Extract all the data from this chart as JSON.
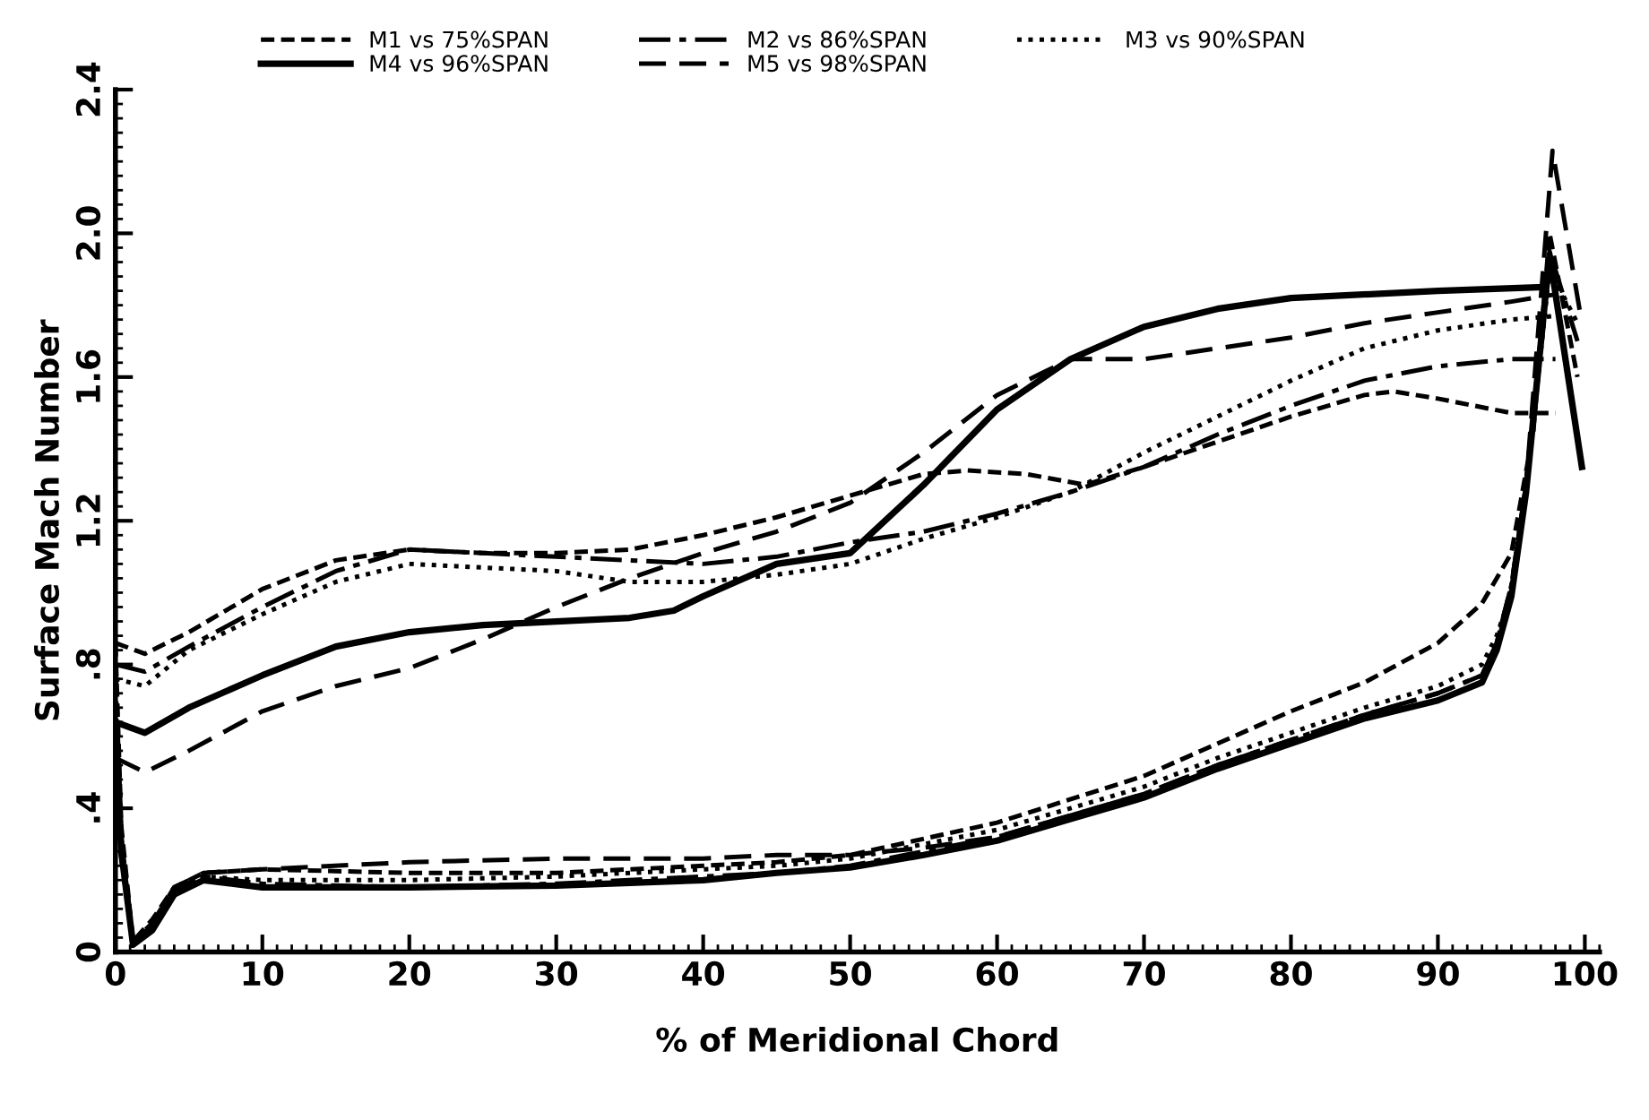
{
  "chart_data": {
    "type": "line",
    "xlabel": "% of Meridional Chord",
    "ylabel": "Surface Mach Number",
    "xlim": [
      0,
      101
    ],
    "ylim": [
      0,
      2.4
    ],
    "xticks": [
      0,
      10,
      20,
      30,
      40,
      50,
      60,
      70,
      80,
      90,
      100
    ],
    "yticks": [
      0,
      {
        "value": 0.4,
        "label": ".4"
      },
      {
        "value": 0.8,
        "label": ".8"
      },
      1.2,
      1.6,
      {
        "value": 2.0,
        "label": "2.0"
      },
      2.4
    ],
    "grid": false,
    "legend": "top",
    "marker": "none",
    "series": [
      {
        "name": "M1 vs 75%SPAN",
        "color": "#000000",
        "line_style": "dashed",
        "x": [
          0,
          2,
          5,
          10,
          15,
          20,
          25,
          30,
          35,
          40,
          45,
          50,
          55,
          58,
          62,
          66,
          70,
          75,
          80,
          85,
          87,
          90,
          95,
          98
        ],
        "values": [
          0.86,
          0.83,
          0.89,
          1.01,
          1.09,
          1.12,
          1.11,
          1.11,
          1.12,
          1.16,
          1.21,
          1.27,
          1.33,
          1.34,
          1.33,
          1.3,
          1.35,
          1.42,
          1.49,
          1.55,
          1.56,
          1.54,
          1.5,
          1.5
        ]
      },
      {
        "color": "#000000",
        "line_style": "dashed",
        "x": [
          0,
          0.4,
          1.2,
          2.5,
          4,
          6,
          10,
          20,
          30,
          40,
          45,
          50,
          60,
          70,
          80,
          85,
          90,
          93,
          95,
          96.5,
          97.6,
          99.5
        ],
        "values": [
          0.86,
          0.35,
          0.03,
          0.09,
          0.18,
          0.22,
          0.23,
          0.22,
          0.22,
          0.24,
          0.25,
          0.27,
          0.36,
          0.49,
          0.67,
          0.75,
          0.86,
          0.97,
          1.11,
          1.45,
          2.0,
          1.6
        ]
      },
      {
        "name": "M2 vs 86%SPAN",
        "color": "#000000",
        "line_style": "dashdot",
        "x": [
          0,
          2,
          5,
          10,
          15,
          20,
          30,
          40,
          45,
          50,
          55,
          60,
          65,
          70,
          75,
          80,
          85,
          90,
          95,
          98
        ],
        "values": [
          0.8,
          0.78,
          0.85,
          0.96,
          1.06,
          1.12,
          1.1,
          1.08,
          1.1,
          1.14,
          1.17,
          1.22,
          1.28,
          1.35,
          1.44,
          1.52,
          1.59,
          1.63,
          1.65,
          1.65
        ]
      },
      {
        "color": "#000000",
        "line_style": "dashdot",
        "x": [
          0,
          0.4,
          1.2,
          2.5,
          4,
          6,
          10,
          20,
          30,
          40,
          45,
          50,
          55,
          60,
          65,
          70,
          75,
          80,
          85,
          90,
          93,
          94,
          95,
          96,
          97.6,
          99.5
        ],
        "values": [
          0.8,
          0.32,
          0.03,
          0.07,
          0.17,
          0.21,
          0.19,
          0.18,
          0.19,
          0.21,
          0.22,
          0.24,
          0.28,
          0.32,
          0.38,
          0.44,
          0.52,
          0.59,
          0.66,
          0.72,
          0.77,
          0.86,
          1.02,
          1.3,
          1.95,
          1.7
        ]
      },
      {
        "name": "M3 vs 90%SPAN",
        "color": "#000000",
        "line_style": "dotted",
        "x": [
          0,
          2,
          5,
          10,
          15,
          20,
          25,
          30,
          35,
          40,
          45,
          50,
          55,
          60,
          65,
          70,
          75,
          80,
          85,
          90,
          95,
          98
        ],
        "values": [
          0.76,
          0.74,
          0.84,
          0.94,
          1.03,
          1.08,
          1.07,
          1.06,
          1.03,
          1.03,
          1.05,
          1.08,
          1.15,
          1.21,
          1.28,
          1.39,
          1.49,
          1.59,
          1.68,
          1.73,
          1.76,
          1.77
        ]
      },
      {
        "color": "#000000",
        "line_style": "dotted",
        "x": [
          0,
          0.4,
          1.2,
          2.5,
          4,
          6,
          10,
          20,
          30,
          40,
          45,
          50,
          55,
          60,
          65,
          70,
          75,
          80,
          85,
          90,
          93,
          94,
          95,
          96,
          97.6,
          99.5
        ],
        "values": [
          0.76,
          0.3,
          0.03,
          0.07,
          0.17,
          0.21,
          0.2,
          0.2,
          0.21,
          0.23,
          0.24,
          0.26,
          0.3,
          0.34,
          0.4,
          0.46,
          0.54,
          0.61,
          0.68,
          0.74,
          0.8,
          0.88,
          1.0,
          1.28,
          1.9,
          1.75
        ]
      },
      {
        "name": "M4 vs 96%SPAN",
        "color": "#000000",
        "line_style": "solid",
        "x": [
          0,
          2,
          5,
          10,
          15,
          20,
          25,
          30,
          35,
          38,
          40,
          45,
          50,
          55,
          60,
          65,
          70,
          75,
          80,
          90,
          97
        ],
        "values": [
          0.64,
          0.61,
          0.68,
          0.77,
          0.85,
          0.89,
          0.91,
          0.92,
          0.93,
          0.95,
          0.99,
          1.08,
          1.11,
          1.3,
          1.51,
          1.65,
          1.74,
          1.79,
          1.82,
          1.84,
          1.85
        ]
      },
      {
        "color": "#000000",
        "line_style": "solid",
        "x": [
          0,
          0.4,
          1.2,
          2.5,
          4,
          6,
          10,
          20,
          30,
          40,
          45,
          50,
          55,
          60,
          65,
          70,
          75,
          80,
          85,
          90,
          93,
          94,
          95,
          96,
          97.6,
          99.8
        ],
        "values": [
          0.64,
          0.28,
          0.02,
          0.06,
          0.16,
          0.2,
          0.18,
          0.18,
          0.185,
          0.2,
          0.22,
          0.235,
          0.27,
          0.31,
          0.37,
          0.43,
          0.51,
          0.58,
          0.65,
          0.7,
          0.75,
          0.84,
          0.99,
          1.28,
          1.94,
          1.35
        ]
      },
      {
        "name": "M5 vs 98%SPAN",
        "color": "#000000",
        "line_style": "longdashed",
        "x": [
          0,
          2,
          5,
          10,
          15,
          20,
          25,
          30,
          35,
          40,
          45,
          50,
          55,
          60,
          63,
          65,
          70,
          75,
          80,
          85,
          90,
          95,
          98
        ],
        "values": [
          0.54,
          0.5,
          0.56,
          0.67,
          0.74,
          0.79,
          0.87,
          0.96,
          1.04,
          1.11,
          1.17,
          1.25,
          1.39,
          1.55,
          1.61,
          1.65,
          1.65,
          1.68,
          1.71,
          1.75,
          1.78,
          1.81,
          1.83
        ]
      },
      {
        "color": "#000000",
        "line_style": "longdashed",
        "x": [
          0,
          0.4,
          1.2,
          2.5,
          4,
          6,
          10,
          20,
          30,
          40,
          45,
          50,
          55,
          60,
          65,
          70,
          75,
          80,
          85,
          90,
          93,
          94,
          95,
          96,
          97.8,
          99.8
        ],
        "values": [
          0.54,
          0.26,
          0.03,
          0.08,
          0.18,
          0.22,
          0.23,
          0.25,
          0.26,
          0.26,
          0.27,
          0.27,
          0.29,
          0.32,
          0.38,
          0.44,
          0.52,
          0.59,
          0.66,
          0.72,
          0.77,
          0.86,
          1.02,
          1.3,
          2.23,
          1.75
        ]
      }
    ]
  }
}
